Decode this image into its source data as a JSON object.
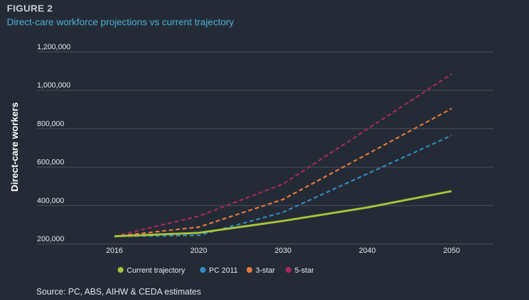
{
  "figure_label": "FIGURE 2",
  "title": "Direct-care workforce projections vs current trajectory",
  "source": "Source: PC, ABS, AIHW & CEDA estimates",
  "chart_data": {
    "type": "line",
    "title": "Direct-care workforce projections vs current trajectory",
    "xlabel": "",
    "ylabel": "Direct-care workers",
    "x": [
      2016,
      2020,
      2030,
      2040,
      2050
    ],
    "x_tick_labels": [
      "2016",
      "2020",
      "2030",
      "2040",
      "2050"
    ],
    "ylim": [
      200000,
      1200000
    ],
    "y_ticks": [
      200000,
      400000,
      600000,
      800000,
      1000000,
      1200000
    ],
    "y_tick_labels": [
      "200,000",
      "400,000",
      "600,000",
      "800,000",
      "1,000,000",
      "1,200,000"
    ],
    "grid": true,
    "legend_position": "bottom",
    "series": [
      {
        "name": "Current trajectory",
        "color": "#a8c43a",
        "dashed": false,
        "values": [
          240000,
          258000,
          320000,
          390000,
          475000
        ]
      },
      {
        "name": "PC 2011",
        "color": "#2f8ec4",
        "dashed": true,
        "values": [
          240000,
          245000,
          365000,
          565000,
          765000
        ]
      },
      {
        "name": "3-star",
        "color": "#e87a3a",
        "dashed": true,
        "values": [
          240000,
          288000,
          432000,
          668000,
          905000
        ]
      },
      {
        "name": "5-star",
        "color": "#a8285f",
        "dashed": true,
        "values": [
          240000,
          345000,
          512000,
          798000,
          1085000
        ]
      }
    ]
  }
}
